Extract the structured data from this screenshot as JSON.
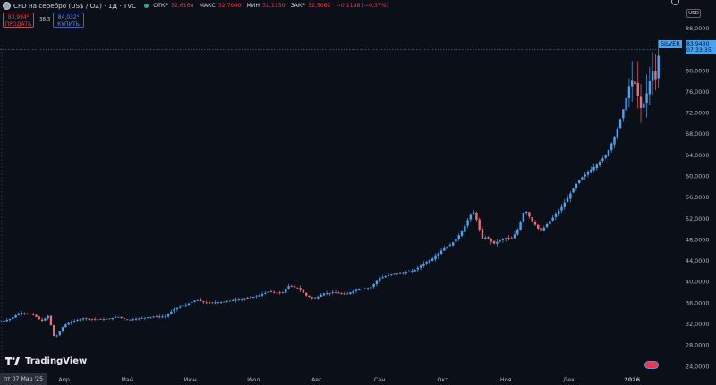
{
  "header": {
    "title": "CFD на серебро (US$ / OZ) · 1Д · TVC",
    "ohlc": [
      {
        "key": "ОТКР",
        "value": "32,6168"
      },
      {
        "key": "МАКС",
        "value": "32,7040"
      },
      {
        "key": "МИН",
        "value": "32,1150"
      },
      {
        "key": "ЗАКР",
        "value": "32,5062"
      }
    ],
    "change": "−0,1198 (−0,37%)"
  },
  "trade": {
    "sell_price": "83,994⁴",
    "sell_label": "ПРОДАТЬ",
    "spread": "38,3",
    "buy_price": "84,032⁴",
    "buy_label": "КУПИТЬ"
  },
  "currency": "USD",
  "symbol_tag": "SILVER",
  "current_price": "83,9430",
  "countdown": "07:33:35",
  "crosshair_date": "пт 07 Мар '25",
  "brand": "TradingView",
  "colors": {
    "background": "#0b0f18",
    "up": "#4aa3f0",
    "down": "#f06a70",
    "axis_text": "#b2b5be"
  },
  "chart_data": {
    "type": "candlestick",
    "title": "CFD на серебро (US$ / OZ)",
    "xlabel": "",
    "ylabel": "",
    "ylim": [
      23,
      90
    ],
    "y_ticks": [
      "88,0000",
      "84,0000",
      "80,0000",
      "76,0000",
      "72,0000",
      "68,0000",
      "64,0000",
      "60,0000",
      "56,0000",
      "52,0000",
      "48,0000",
      "44,0000",
      "40,0000",
      "36,0000",
      "32,0000",
      "28,0000",
      "24,0000"
    ],
    "x_ticks": [
      "Апр",
      "Май",
      "Июн",
      "Июл",
      "Авг",
      "Сен",
      "Окт",
      "Ноя",
      "Дек",
      "2026"
    ],
    "x_tick_months": [
      1,
      2,
      3,
      4,
      5,
      6,
      7,
      8,
      9,
      10
    ],
    "last_price": 83.943,
    "grid": false,
    "legend": "none",
    "close_path": [
      [
        0,
        32.5
      ],
      [
        0.15,
        33.0
      ],
      [
        0.3,
        34.2
      ],
      [
        0.5,
        33.8
      ],
      [
        0.65,
        32.6
      ],
      [
        0.75,
        33.6
      ],
      [
        0.85,
        29.2
      ],
      [
        0.92,
        30.5
      ],
      [
        1.0,
        31.8
      ],
      [
        1.15,
        32.6
      ],
      [
        1.3,
        33.1
      ],
      [
        1.5,
        32.9
      ],
      [
        1.7,
        33.0
      ],
      [
        1.85,
        33.4
      ],
      [
        2.0,
        32.8
      ],
      [
        2.2,
        33.1
      ],
      [
        2.4,
        33.4
      ],
      [
        2.6,
        33.4
      ],
      [
        2.75,
        34.9
      ],
      [
        2.9,
        35.5
      ],
      [
        3.1,
        36.6
      ],
      [
        3.25,
        36.0
      ],
      [
        3.5,
        36.2
      ],
      [
        3.7,
        36.6
      ],
      [
        3.9,
        36.8
      ],
      [
        4.05,
        37.3
      ],
      [
        4.25,
        38.2
      ],
      [
        4.45,
        37.8
      ],
      [
        4.55,
        39.2
      ],
      [
        4.7,
        38.9
      ],
      [
        4.85,
        37.3
      ],
      [
        4.95,
        36.7
      ],
      [
        5.1,
        37.8
      ],
      [
        5.3,
        38.0
      ],
      [
        5.45,
        37.6
      ],
      [
        5.65,
        38.6
      ],
      [
        5.85,
        38.9
      ],
      [
        6.0,
        40.7
      ],
      [
        6.2,
        41.5
      ],
      [
        6.4,
        41.7
      ],
      [
        6.55,
        42.2
      ],
      [
        6.7,
        43.5
      ],
      [
        6.85,
        44.5
      ],
      [
        7.0,
        46.2
      ],
      [
        7.15,
        47.3
      ],
      [
        7.3,
        49.5
      ],
      [
        7.4,
        51.8
      ],
      [
        7.48,
        53.5
      ],
      [
        7.55,
        51.3
      ],
      [
        7.62,
        48.2
      ],
      [
        7.7,
        48.5
      ],
      [
        7.8,
        47.2
      ],
      [
        7.9,
        47.8
      ],
      [
        8.0,
        48.3
      ],
      [
        8.1,
        48.2
      ],
      [
        8.2,
        50.2
      ],
      [
        8.3,
        53.8
      ],
      [
        8.4,
        51.8
      ],
      [
        8.55,
        49.5
      ],
      [
        8.7,
        51.6
      ],
      [
        8.85,
        53.6
      ],
      [
        9.0,
        56.3
      ],
      [
        9.15,
        59.2
      ],
      [
        9.3,
        60.8
      ],
      [
        9.45,
        62.3
      ],
      [
        9.6,
        64.2
      ],
      [
        9.75,
        68.3
      ],
      [
        9.85,
        72.2
      ],
      [
        9.92,
        75.4
      ],
      [
        9.98,
        78.4
      ],
      [
        10.05,
        77.4
      ],
      [
        10.15,
        72.4
      ],
      [
        10.25,
        76.4
      ],
      [
        10.32,
        80.2
      ],
      [
        10.37,
        78.2
      ],
      [
        10.43,
        83.9
      ]
    ]
  }
}
